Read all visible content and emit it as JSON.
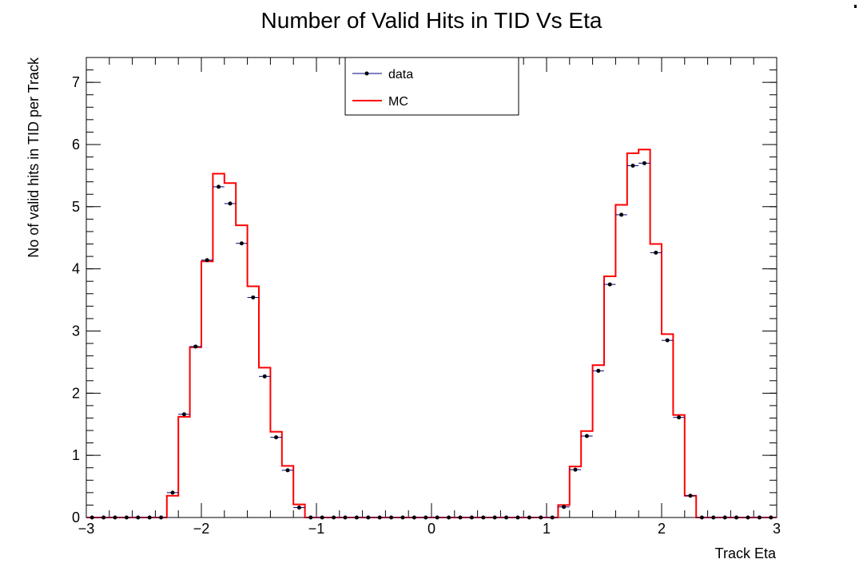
{
  "chart_data": {
    "type": "line",
    "title": "Number of Valid Hits in TID Vs Eta",
    "xlabel": "Track Eta",
    "ylabel": "No of valid hits in TID per Track",
    "xlim": [
      -3,
      3
    ],
    "ylim": [
      0,
      7.4
    ],
    "x_ticks": [
      -3,
      -2,
      -1,
      0,
      1,
      2,
      3
    ],
    "x_tick_labels": [
      "−3",
      "−2",
      "−1",
      "0",
      "1",
      "2",
      "3"
    ],
    "y_ticks": [
      0,
      1,
      2,
      3,
      4,
      5,
      6,
      7
    ],
    "y_tick_labels": [
      "0",
      "1",
      "2",
      "3",
      "4",
      "5",
      "6",
      "7"
    ],
    "grid": false,
    "legend_position": "top-center",
    "legend": [
      "data",
      "MC"
    ],
    "bin_edges": [
      -3.0,
      -2.9,
      -2.8,
      -2.7,
      -2.6,
      -2.5,
      -2.4,
      -2.3,
      -2.2,
      -2.1,
      -2.0,
      -1.9,
      -1.8,
      -1.7,
      -1.6,
      -1.5,
      -1.4,
      -1.3,
      -1.2,
      -1.1,
      -1.0,
      -0.9,
      -0.8,
      -0.7,
      -0.6,
      -0.5,
      -0.4,
      -0.3,
      -0.2,
      -0.1,
      0.0,
      0.1,
      0.2,
      0.3,
      0.4,
      0.5,
      0.6,
      0.7,
      0.8,
      0.9,
      1.0,
      1.1,
      1.2,
      1.3,
      1.4,
      1.5,
      1.6,
      1.7,
      1.8,
      1.9,
      2.0,
      2.1,
      2.2,
      2.3,
      2.4,
      2.5,
      2.6,
      2.7,
      2.8,
      2.9,
      3.0
    ],
    "series": [
      {
        "name": "data",
        "color": "#000080",
        "marker": "point",
        "values": [
          0.0,
          0.0,
          0.0,
          0.0,
          0.0,
          0.0,
          0.0,
          0.4,
          1.66,
          2.75,
          4.14,
          5.32,
          5.05,
          4.41,
          3.54,
          2.27,
          1.29,
          0.76,
          0.16,
          0.0,
          0.0,
          0.0,
          0.0,
          0.0,
          0.0,
          0.0,
          0.0,
          0.0,
          0.0,
          0.0,
          0.0,
          0.0,
          0.0,
          0.0,
          0.0,
          0.0,
          0.0,
          0.0,
          0.0,
          0.0,
          0.0,
          0.17,
          0.77,
          1.31,
          2.36,
          3.75,
          4.87,
          5.66,
          5.7,
          4.26,
          2.85,
          1.61,
          0.35,
          0.0,
          0.0,
          0.0,
          0.0,
          0.0,
          0.0,
          0.0
        ]
      },
      {
        "name": "MC",
        "color": "#ff0000",
        "marker": "step",
        "values": [
          0.0,
          0.0,
          0.0,
          0.0,
          0.0,
          0.0,
          0.0,
          0.35,
          1.62,
          2.74,
          4.12,
          5.53,
          5.38,
          4.7,
          3.72,
          2.41,
          1.38,
          0.83,
          0.21,
          0.0,
          0.0,
          0.0,
          0.0,
          0.0,
          0.0,
          0.0,
          0.0,
          0.0,
          0.0,
          0.0,
          0.0,
          0.0,
          0.0,
          0.0,
          0.0,
          0.0,
          0.0,
          0.0,
          0.0,
          0.0,
          0.0,
          0.2,
          0.82,
          1.39,
          2.45,
          3.88,
          5.03,
          5.86,
          5.92,
          4.4,
          2.95,
          1.65,
          0.35,
          0.0,
          0.0,
          0.0,
          0.0,
          0.0,
          0.0,
          0.0
        ]
      }
    ]
  }
}
